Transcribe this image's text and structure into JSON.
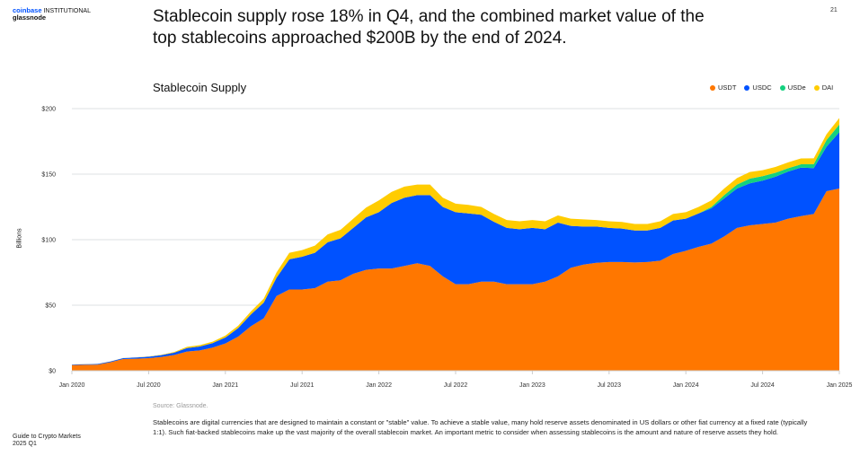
{
  "header": {
    "brand_primary": "coinbase",
    "brand_secondary": "INSTITUTIONAL",
    "brand_partner": "glassnode",
    "headline": "Stablecoin supply rose 18% in Q4, and the combined market value of the top stablecoins approached $200B by the end of 2024.",
    "page_number": "21"
  },
  "chart_data": {
    "type": "area",
    "stacked": true,
    "title": "Stablecoin Supply",
    "xlabel": "",
    "ylabel": "Billions",
    "ylim": [
      0,
      200
    ],
    "yticks": [
      "$0",
      "$50",
      "$100",
      "$150",
      "$200"
    ],
    "ytick_values": [
      0,
      50,
      100,
      150,
      200
    ],
    "xticks": [
      "Jan 2020",
      "Jul 2020",
      "Jan 2021",
      "Jul 2021",
      "Jan 2022",
      "Jul 2022",
      "Jan 2023",
      "Jul 2023",
      "Jan 2024",
      "Jul 2024",
      "Jan 2025"
    ],
    "grid": true,
    "legend": "top-right",
    "x": [
      "2020-01",
      "2020-02",
      "2020-03",
      "2020-04",
      "2020-05",
      "2020-06",
      "2020-07",
      "2020-08",
      "2020-09",
      "2020-10",
      "2020-11",
      "2020-12",
      "2021-01",
      "2021-02",
      "2021-03",
      "2021-04",
      "2021-05",
      "2021-06",
      "2021-07",
      "2021-08",
      "2021-09",
      "2021-10",
      "2021-11",
      "2021-12",
      "2022-01",
      "2022-02",
      "2022-03",
      "2022-04",
      "2022-05",
      "2022-06",
      "2022-07",
      "2022-08",
      "2022-09",
      "2022-10",
      "2022-11",
      "2022-12",
      "2023-01",
      "2023-02",
      "2023-03",
      "2023-04",
      "2023-05",
      "2023-06",
      "2023-07",
      "2023-08",
      "2023-09",
      "2023-10",
      "2023-11",
      "2023-12",
      "2024-01",
      "2024-02",
      "2024-03",
      "2024-04",
      "2024-05",
      "2024-06",
      "2024-07",
      "2024-08",
      "2024-09",
      "2024-10",
      "2024-11",
      "2024-12",
      "2025-01"
    ],
    "series": [
      {
        "name": "USDT",
        "color": "#ff7700",
        "values": [
          4.3,
          4.5,
          4.6,
          6.4,
          8.9,
          9.2,
          9.6,
          10.5,
          12,
          14.6,
          15.5,
          17.6,
          20.8,
          26,
          34,
          40,
          57,
          62,
          62,
          63,
          68,
          69,
          74,
          77,
          78,
          78,
          80,
          82,
          80,
          72,
          66,
          66,
          68,
          68,
          66,
          66,
          66,
          68,
          72,
          78.5,
          81,
          82.4,
          83,
          83,
          82.6,
          83,
          84,
          89,
          91.5,
          94.5,
          97,
          102.5,
          109,
          111,
          112,
          113,
          116,
          118,
          119.6,
          137,
          139
        ]
      },
      {
        "name": "USDC",
        "color": "#0052ff",
        "values": [
          0.4,
          0.45,
          0.5,
          0.6,
          0.7,
          0.9,
          1.1,
          1.4,
          1.8,
          2.7,
          3,
          3.5,
          4.5,
          6.5,
          9,
          12,
          14,
          23,
          25,
          27,
          30,
          32,
          35,
          40,
          43,
          50,
          52,
          52,
          54,
          53,
          55,
          54,
          51,
          45.6,
          43,
          42,
          43,
          40,
          41,
          32,
          29,
          27.6,
          26,
          25.5,
          24.4,
          24,
          25,
          25.6,
          24.5,
          25.5,
          27,
          29,
          30,
          32,
          33,
          35,
          36,
          37,
          35,
          34,
          43
        ]
      },
      {
        "name": "USDe",
        "color": "#14d17f",
        "values": [
          0,
          0,
          0,
          0,
          0,
          0,
          0,
          0,
          0,
          0,
          0,
          0,
          0,
          0,
          0,
          0,
          0,
          0,
          0,
          0,
          0,
          0,
          0,
          0,
          0,
          0,
          0,
          0,
          0,
          0,
          0,
          0,
          0,
          0,
          0,
          0,
          0,
          0,
          0,
          0,
          0,
          0,
          0,
          0,
          0,
          0,
          0,
          0,
          0,
          0,
          1,
          2.5,
          3,
          3.6,
          3.5,
          3,
          2.5,
          2.5,
          3,
          5,
          5.8
        ]
      },
      {
        "name": "DAI",
        "color": "#ffcc00",
        "values": [
          0.1,
          0.1,
          0.1,
          0.1,
          0.1,
          0.1,
          0.15,
          0.3,
          0.5,
          0.9,
          1,
          1.1,
          1.5,
          1.8,
          2.3,
          3,
          4,
          5,
          5,
          5.5,
          6,
          6.5,
          7,
          7.5,
          9,
          8.5,
          8.5,
          8,
          8,
          7,
          6.5,
          6.5,
          6,
          6,
          6,
          6,
          6,
          6,
          5.5,
          5.5,
          5.5,
          5,
          5,
          5,
          5,
          5,
          5,
          5,
          5,
          5,
          5,
          5,
          5,
          5,
          4.5,
          4.5,
          4.5,
          4.5,
          4.5,
          4.5,
          5
        ]
      }
    ]
  },
  "source": "Source: Glassnode.",
  "body": "Stablecoins are digital currencies that are designed to maintain a constant or \"stable\" value. To achieve a stable value, many hold reserve assets denominated in US dollars or other fiat currency at a fixed rate (typically 1:1). Such fiat-backed stablecoins make up the vast majority of the overall stablecoin market. An important metric to consider when assessing stablecoins is the amount and nature of reserve assets they hold.",
  "footer": {
    "line1": "Guide to Crypto Markets",
    "line2": "2025 Q1"
  }
}
